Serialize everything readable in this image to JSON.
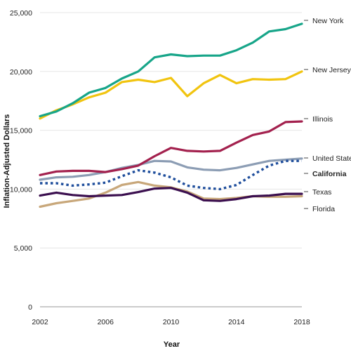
{
  "chart_data": {
    "type": "line",
    "xlabel": "Year",
    "ylabel": "Inflation-Adjusted Dollars",
    "xlim": [
      2002,
      2018
    ],
    "ylim": [
      0,
      25000
    ],
    "x_ticks": [
      "2002",
      "2006",
      "2010",
      "2014",
      "2018"
    ],
    "y_ticks": [
      "0",
      "5,000",
      "10,000",
      "15,000",
      "20,000",
      "25,000"
    ],
    "grid": "horizontal",
    "legend": "line-end labels",
    "x": [
      2002,
      2003,
      2004,
      2005,
      2006,
      2007,
      2008,
      2009,
      2010,
      2011,
      2012,
      2013,
      2014,
      2015,
      2016,
      2017,
      2018
    ],
    "series": [
      {
        "name": "New York",
        "color": "#17a589",
        "style": "solid",
        "values": [
          16200,
          16600,
          17300,
          18200,
          18600,
          19400,
          20000,
          21200,
          21450,
          21300,
          21350,
          21350,
          21800,
          22450,
          23400,
          23600,
          24050
        ]
      },
      {
        "name": "New Jersey",
        "color": "#f1c40f",
        "style": "solid",
        "values": [
          16000,
          16700,
          17200,
          17800,
          18200,
          19100,
          19300,
          19100,
          19450,
          17900,
          19000,
          19700,
          19000,
          19350,
          19300,
          19350,
          20000
        ]
      },
      {
        "name": "Illinois",
        "color": "#a3214e",
        "style": "solid",
        "values": [
          11200,
          11500,
          11550,
          11550,
          11450,
          11700,
          12000,
          12800,
          13500,
          13250,
          13200,
          13250,
          13950,
          14600,
          14900,
          15700,
          15750
        ]
      },
      {
        "name": "United States",
        "color": "#8c9db4",
        "style": "solid",
        "values": [
          10800,
          11000,
          11050,
          11200,
          11450,
          11800,
          12050,
          12400,
          12350,
          11850,
          11650,
          11600,
          11800,
          12100,
          12400,
          12500,
          12600
        ]
      },
      {
        "name": "California",
        "color": "#1f4e9c",
        "style": "dashed",
        "values": [
          10500,
          10500,
          10300,
          10400,
          10550,
          11100,
          11600,
          11400,
          11000,
          10300,
          10100,
          10000,
          10350,
          11200,
          12000,
          12400,
          12400
        ]
      },
      {
        "name": "Texas",
        "color": "#c8a77a",
        "style": "solid",
        "values": [
          8500,
          8800,
          9000,
          9200,
          9700,
          10350,
          10600,
          10300,
          10150,
          9800,
          9200,
          9150,
          9250,
          9400,
          9350,
          9350,
          9400
        ]
      },
      {
        "name": "Florida",
        "color": "#3b0f4f",
        "style": "solid",
        "values": [
          9450,
          9700,
          9500,
          9400,
          9450,
          9500,
          9750,
          10050,
          10100,
          9700,
          9050,
          9000,
          9150,
          9400,
          9450,
          9600,
          9600
        ]
      }
    ]
  }
}
